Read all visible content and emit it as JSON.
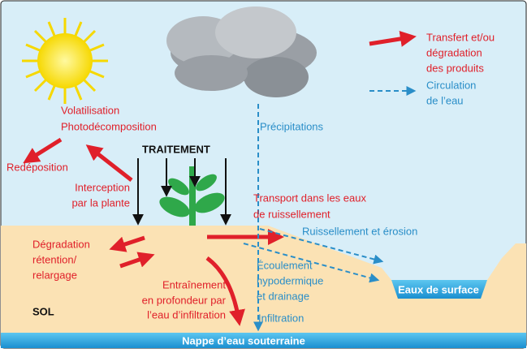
{
  "legend": {
    "transfer": [
      "Transfert et/ou",
      "dégradation",
      "des produits"
    ],
    "water": [
      "Circulation",
      "de l’eau"
    ]
  },
  "labels": {
    "precipitations": "Précipitations",
    "volatilisation": [
      "Volatilisation",
      "Photodécomposition"
    ],
    "redeposition": "Redéposition",
    "traitement": "TRAITEMENT",
    "interception": [
      "Interception",
      "par la plante"
    ],
    "transport": [
      "Transport dans les eaux",
      "de ruissellement"
    ],
    "ruissellement": "Ruissellement et érosion",
    "degradation": [
      "Dégradation",
      "rétention/",
      "relargage"
    ],
    "ecoulement": [
      "Écoulement",
      "hypodermique",
      "et drainage"
    ],
    "entrainement": [
      "Entraînement",
      "en profondeur par",
      "l’eau d’infiltration"
    ],
    "surface": "Eaux de surface",
    "sol": "SOL",
    "infiltration": "Infiltration",
    "nappe": "Nappe d’eau souterraine"
  }
}
